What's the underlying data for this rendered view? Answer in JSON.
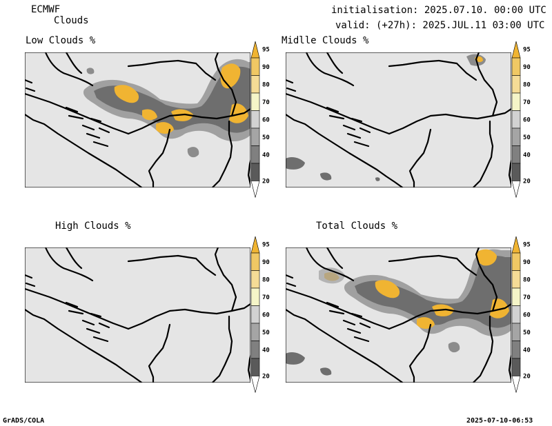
{
  "header": {
    "model": "ECMWF",
    "product": "Clouds",
    "init_line": "initialisation: 2025.07.10. 00:00 UTC",
    "valid_line": "valid: (+27h): 2025.JUL.11 03:00 UTC"
  },
  "panels": [
    {
      "id": "low",
      "title": "Low Clouds %"
    },
    {
      "id": "middle",
      "title": "Midlle Clouds %"
    },
    {
      "id": "high",
      "title": "High Clouds %"
    },
    {
      "id": "total",
      "title": "Total Clouds %"
    }
  ],
  "colorbar": {
    "levels": [
      "20",
      "40",
      "50",
      "60",
      "70",
      "80",
      "90",
      "95"
    ],
    "colors": [
      "#ffffff",
      "#5a5a5a",
      "#808080",
      "#a5a5a5",
      "#d2d2d2",
      "#f5f5c8",
      "#f5dc96",
      "#f0c864",
      "#f0b432"
    ]
  },
  "footer": {
    "left": "GrADS/COLA",
    "right": "2025-07-10-06:53"
  },
  "colors": {
    "map_bg": "#e5e5e5",
    "border": "#000000",
    "dark": "#5a5a5a",
    "mid": "#8c8c8c",
    "light": "#b4b4b4",
    "pale": "#f5e6a0",
    "yellow": "#f0b432"
  }
}
